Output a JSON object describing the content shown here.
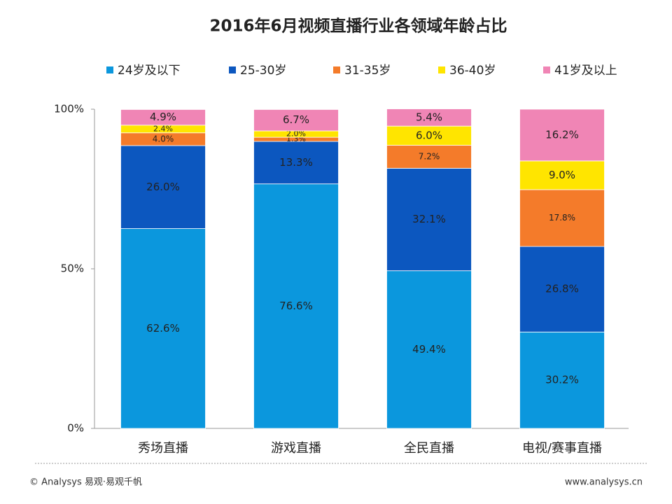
{
  "chart_data": {
    "type": "stacked_bar",
    "title": "2016年6月视频直播行业各领域年龄占比",
    "categories": [
      "秀场直播",
      "游戏直播",
      "全民直播",
      "电视/赛事直播"
    ],
    "series": [
      {
        "name": "24岁及以下",
        "color": "#0b97dd",
        "values": [
          62.6,
          76.6,
          49.4,
          30.2
        ],
        "value_labels": [
          "62.6%",
          "76.6%",
          "49.4%",
          "30.2%"
        ]
      },
      {
        "name": "25-30岁",
        "color": "#0c57bf",
        "values": [
          26.0,
          13.3,
          32.1,
          26.8
        ],
        "value_labels": [
          "26.0%",
          "13.3%",
          "32.1%",
          "26.8%"
        ]
      },
      {
        "name": "31-35岁",
        "color": "#f47b2a",
        "values": [
          4.0,
          1.3,
          7.2,
          17.8
        ],
        "value_labels": [
          "4.0%",
          "1.3%",
          "7.2%",
          "17.8%"
        ]
      },
      {
        "name": "36-40岁",
        "color": "#ffe500",
        "values": [
          2.4,
          2.0,
          6.0,
          9.0
        ],
        "value_labels": [
          "2.4%",
          "2.0%",
          "6.0%",
          "9.0%"
        ]
      },
      {
        "name": "41岁及以上",
        "color": "#f085b5",
        "values": [
          4.9,
          6.7,
          5.4,
          16.2
        ],
        "value_labels": [
          "4.9%",
          "6.7%",
          "5.4%",
          "16.2%"
        ]
      }
    ],
    "ylim": [
      0,
      100
    ],
    "yticks": [
      {
        "value": 0,
        "label": "0%"
      },
      {
        "value": 50,
        "label": "50%"
      },
      {
        "value": 100,
        "label": "100%"
      }
    ],
    "legend": "top"
  },
  "footer": {
    "left": "© Analysys 易观·易观千帆",
    "right": "www.analysys.cn"
  }
}
